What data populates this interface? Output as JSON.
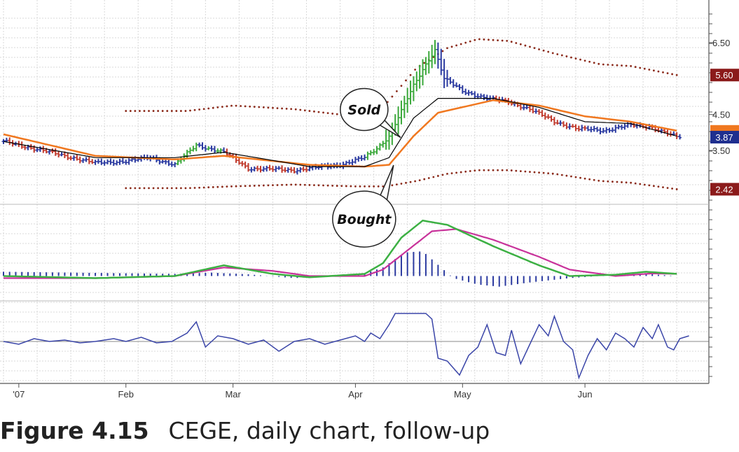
{
  "caption": {
    "figure_number": "Figure 4.15",
    "text": "CEGE, daily chart, follow-up"
  },
  "colors": {
    "grid": "#d9d9d9",
    "axis": "#555555",
    "bar_up": "#3aa83a",
    "bar_down": "#c0392b",
    "bar_neutral": "#2b3aa0",
    "ema_fast": "#000000",
    "ema_slow": "#f07820",
    "envelope": "#8b2a1a",
    "macd_fast": "#3cb043",
    "macd_slow": "#c8329a",
    "histogram": "#2b3aa0",
    "force_line": "#3a45a8",
    "tag_dark_red": "#8b1a1a",
    "tag_blue": "#1f2f8f",
    "tag_orange": "#f07820"
  },
  "chart_data": [
    {
      "type": "ohlc",
      "panel": "price",
      "x_labels": [
        "'07",
        "Feb",
        "Mar",
        "Apr",
        "May",
        "Jun"
      ],
      "x_label_days": [
        5,
        40,
        75,
        115,
        150,
        190
      ],
      "y_ticks": [
        "6.50",
        "4.50",
        "3.50"
      ],
      "y_tick_values": [
        6.5,
        4.5,
        3.5
      ],
      "ylim": [
        2.0,
        7.3
      ],
      "price_tags": [
        {
          "label": "5.60",
          "value": 5.6,
          "color": "tag_dark_red"
        },
        {
          "label": "3.87",
          "value": 3.87,
          "color": "tag_blue"
        },
        {
          "label": "2.42",
          "value": 2.42,
          "color": "tag_dark_red"
        }
      ],
      "annotations": [
        {
          "text": "Sold",
          "day": 127,
          "value": 3.9,
          "side": "above"
        },
        {
          "text": "Bought",
          "day": 127,
          "value": 3.05,
          "side": "below"
        }
      ],
      "price_anchors": [
        [
          0,
          3.75
        ],
        [
          10,
          3.55
        ],
        [
          20,
          3.35
        ],
        [
          30,
          3.15
        ],
        [
          40,
          3.2
        ],
        [
          48,
          3.3
        ],
        [
          56,
          3.1
        ],
        [
          63,
          3.65
        ],
        [
          72,
          3.45
        ],
        [
          80,
          3.0
        ],
        [
          95,
          2.95
        ],
        [
          110,
          3.1
        ],
        [
          118,
          3.3
        ],
        [
          122,
          3.55
        ],
        [
          126,
          3.9
        ],
        [
          130,
          4.6
        ],
        [
          134,
          5.3
        ],
        [
          138,
          5.9
        ],
        [
          141,
          6.3
        ],
        [
          144,
          5.5
        ],
        [
          150,
          5.15
        ],
        [
          158,
          4.95
        ],
        [
          165,
          4.85
        ],
        [
          172,
          4.65
        ],
        [
          180,
          4.3
        ],
        [
          188,
          4.1
        ],
        [
          196,
          4.05
        ],
        [
          204,
          4.2
        ],
        [
          212,
          4.15
        ],
        [
          220,
          3.87
        ]
      ],
      "ema_fast_anchors": [
        [
          0,
          3.75
        ],
        [
          30,
          3.3
        ],
        [
          56,
          3.3
        ],
        [
          72,
          3.45
        ],
        [
          100,
          3.05
        ],
        [
          118,
          3.05
        ],
        [
          126,
          3.3
        ],
        [
          134,
          4.4
        ],
        [
          142,
          4.95
        ],
        [
          160,
          4.95
        ],
        [
          175,
          4.7
        ],
        [
          190,
          4.3
        ],
        [
          205,
          4.25
        ],
        [
          220,
          3.9
        ]
      ],
      "ema_slow_anchors": [
        [
          0,
          3.95
        ],
        [
          30,
          3.35
        ],
        [
          56,
          3.25
        ],
        [
          72,
          3.35
        ],
        [
          100,
          3.1
        ],
        [
          118,
          3.05
        ],
        [
          126,
          3.1
        ],
        [
          134,
          3.9
        ],
        [
          142,
          4.55
        ],
        [
          160,
          4.9
        ],
        [
          175,
          4.75
        ],
        [
          190,
          4.45
        ],
        [
          205,
          4.3
        ],
        [
          220,
          4.05
        ]
      ],
      "envelope_upper_anchors": [
        [
          40,
          4.6
        ],
        [
          60,
          4.6
        ],
        [
          75,
          4.75
        ],
        [
          95,
          4.65
        ],
        [
          115,
          4.45
        ],
        [
          125,
          4.8
        ],
        [
          135,
          5.8
        ],
        [
          145,
          6.35
        ],
        [
          155,
          6.6
        ],
        [
          165,
          6.55
        ],
        [
          180,
          6.2
        ],
        [
          195,
          5.9
        ],
        [
          205,
          5.85
        ],
        [
          220,
          5.6
        ]
      ],
      "envelope_lower_anchors": [
        [
          40,
          2.45
        ],
        [
          60,
          2.45
        ],
        [
          75,
          2.5
        ],
        [
          95,
          2.55
        ],
        [
          115,
          2.5
        ],
        [
          125,
          2.5
        ],
        [
          135,
          2.65
        ],
        [
          145,
          2.85
        ],
        [
          155,
          2.95
        ],
        [
          165,
          2.95
        ],
        [
          180,
          2.85
        ],
        [
          195,
          2.65
        ],
        [
          205,
          2.6
        ],
        [
          220,
          2.42
        ]
      ]
    },
    {
      "type": "line",
      "panel": "macd",
      "macd_fast_anchors": [
        [
          0,
          0.0
        ],
        [
          30,
          -0.05
        ],
        [
          56,
          0.0
        ],
        [
          72,
          0.25
        ],
        [
          88,
          0.05
        ],
        [
          100,
          -0.03
        ],
        [
          118,
          0.05
        ],
        [
          124,
          0.3
        ],
        [
          130,
          0.9
        ],
        [
          137,
          1.3
        ],
        [
          145,
          1.2
        ],
        [
          160,
          0.7
        ],
        [
          175,
          0.25
        ],
        [
          185,
          0.0
        ],
        [
          200,
          0.03
        ],
        [
          210,
          0.1
        ],
        [
          220,
          0.05
        ]
      ],
      "macd_slow_anchors": [
        [
          0,
          -0.05
        ],
        [
          30,
          -0.05
        ],
        [
          56,
          0.0
        ],
        [
          72,
          0.2
        ],
        [
          88,
          0.12
        ],
        [
          100,
          0.0
        ],
        [
          118,
          0.0
        ],
        [
          124,
          0.15
        ],
        [
          132,
          0.6
        ],
        [
          140,
          1.05
        ],
        [
          148,
          1.1
        ],
        [
          160,
          0.85
        ],
        [
          175,
          0.45
        ],
        [
          185,
          0.15
        ],
        [
          200,
          0.0
        ],
        [
          212,
          0.06
        ],
        [
          220,
          0.05
        ]
      ],
      "histogram_anchors": [
        [
          0,
          0.1
        ],
        [
          56,
          0.05
        ],
        [
          68,
          0.08
        ],
        [
          80,
          0.04
        ],
        [
          95,
          -0.05
        ],
        [
          118,
          0.06
        ],
        [
          124,
          0.2
        ],
        [
          131,
          0.55
        ],
        [
          137,
          0.58
        ],
        [
          143,
          0.2
        ],
        [
          147,
          -0.05
        ],
        [
          155,
          -0.2
        ],
        [
          162,
          -0.25
        ],
        [
          172,
          -0.15
        ],
        [
          185,
          -0.05
        ],
        [
          200,
          0.03
        ],
        [
          210,
          0.05
        ],
        [
          220,
          0.0
        ]
      ]
    },
    {
      "type": "line",
      "panel": "force_index",
      "zero_line": 0,
      "anchors": [
        [
          0,
          0.0
        ],
        [
          5,
          -0.1
        ],
        [
          10,
          0.1
        ],
        [
          15,
          0.0
        ],
        [
          20,
          0.05
        ],
        [
          25,
          -0.05
        ],
        [
          30,
          0.0
        ],
        [
          36,
          0.1
        ],
        [
          40,
          0.0
        ],
        [
          45,
          0.15
        ],
        [
          50,
          -0.05
        ],
        [
          55,
          0.0
        ],
        [
          60,
          0.3
        ],
        [
          63,
          0.7
        ],
        [
          66,
          -0.2
        ],
        [
          70,
          0.2
        ],
        [
          75,
          0.1
        ],
        [
          80,
          -0.1
        ],
        [
          85,
          0.05
        ],
        [
          90,
          -0.35
        ],
        [
          95,
          0.0
        ],
        [
          100,
          0.1
        ],
        [
          105,
          -0.1
        ],
        [
          110,
          0.05
        ],
        [
          115,
          0.2
        ],
        [
          118,
          0.0
        ],
        [
          120,
          0.3
        ],
        [
          123,
          0.1
        ],
        [
          126,
          0.6
        ],
        [
          128,
          1.0
        ],
        [
          134,
          1.0
        ],
        [
          138,
          1.0
        ],
        [
          140,
          0.8
        ],
        [
          142,
          -0.6
        ],
        [
          145,
          -0.7
        ],
        [
          149,
          -1.2
        ],
        [
          152,
          -0.5
        ],
        [
          155,
          -0.2
        ],
        [
          158,
          0.6
        ],
        [
          161,
          -0.4
        ],
        [
          164,
          -0.5
        ],
        [
          166,
          0.4
        ],
        [
          169,
          -0.8
        ],
        [
          172,
          -0.1
        ],
        [
          175,
          0.6
        ],
        [
          178,
          0.2
        ],
        [
          180,
          0.9
        ],
        [
          183,
          0.0
        ],
        [
          186,
          -0.3
        ],
        [
          188,
          -1.3
        ],
        [
          191,
          -0.5
        ],
        [
          194,
          0.1
        ],
        [
          197,
          -0.3
        ],
        [
          200,
          0.3
        ],
        [
          203,
          0.1
        ],
        [
          206,
          -0.2
        ],
        [
          209,
          0.5
        ],
        [
          212,
          0.1
        ],
        [
          214,
          0.6
        ],
        [
          217,
          -0.2
        ],
        [
          219,
          -0.3
        ],
        [
          221,
          0.1
        ],
        [
          224,
          0.2
        ]
      ]
    }
  ]
}
